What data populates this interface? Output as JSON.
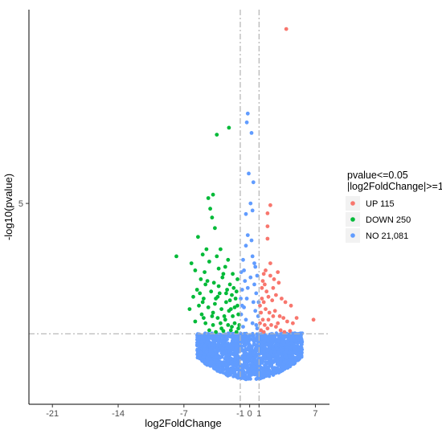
{
  "chart_data": {
    "type": "scatter",
    "title": "",
    "xlabel": "log2FoldChange",
    "ylabel": "-log10(pvalue)",
    "xlim": [
      -23.5,
      8.5
    ],
    "ylim": [
      -0.7,
      10.5
    ],
    "x_ticks": [
      -21,
      -14,
      -7,
      -1,
      0,
      1,
      7
    ],
    "y_ticks": [
      5
    ],
    "thresholds": {
      "log2fc": [
        -1,
        1
      ],
      "neg_log10_p": 1.3
    },
    "grid": false,
    "legend": {
      "title_line1": "pvalue<=0.05",
      "title_line2": "|log2FoldChange|>=1",
      "placement": "right",
      "entries": [
        {
          "label": "UP 115",
          "color": "#F8766D"
        },
        {
          "label": "DOWN 250",
          "color": "#00BA38"
        },
        {
          "label": "NO 21,081",
          "color": "#619CFF"
        }
      ]
    },
    "series": [
      {
        "name": "UP 115",
        "color": "#F8766D",
        "points": [
          [
            3.9,
            9.95
          ],
          [
            2.2,
            4.95
          ],
          [
            1.9,
            4.72
          ],
          [
            1.9,
            4.35
          ],
          [
            1.9,
            4.0
          ],
          [
            2.2,
            3.3
          ],
          [
            3.0,
            3.05
          ],
          [
            2.2,
            2.95
          ],
          [
            2.6,
            2.85
          ],
          [
            3.1,
            2.75
          ],
          [
            2.5,
            2.6
          ],
          [
            1.5,
            3.0
          ],
          [
            1.6,
            2.7
          ],
          [
            1.8,
            2.5
          ],
          [
            2.0,
            2.35
          ],
          [
            2.4,
            2.25
          ],
          [
            3.4,
            2.3
          ],
          [
            3.8,
            2.2
          ],
          [
            4.4,
            2.1
          ],
          [
            6.8,
            1.7
          ],
          [
            1.3,
            2.6
          ],
          [
            1.5,
            2.2
          ],
          [
            1.7,
            2.0
          ],
          [
            2.1,
            1.9
          ],
          [
            2.7,
            1.95
          ],
          [
            3.2,
            1.8
          ],
          [
            3.6,
            1.75
          ],
          [
            4.0,
            1.65
          ],
          [
            4.6,
            1.6
          ],
          [
            5.0,
            1.75
          ],
          [
            1.2,
            1.9
          ],
          [
            1.4,
            1.7
          ],
          [
            1.6,
            1.55
          ],
          [
            1.9,
            1.45
          ],
          [
            2.3,
            1.55
          ],
          [
            2.8,
            1.5
          ],
          [
            3.3,
            1.4
          ],
          [
            3.7,
            1.35
          ],
          [
            4.3,
            1.38
          ],
          [
            1.1,
            1.6
          ],
          [
            1.2,
            1.4
          ],
          [
            1.5,
            1.35
          ],
          [
            2.0,
            1.7
          ],
          [
            2.5,
            1.8
          ],
          [
            3.0,
            1.6
          ],
          [
            1.3,
            2.3
          ],
          [
            1.4,
            2.8
          ],
          [
            1.7,
            3.1
          ],
          [
            2.8,
            2.4
          ],
          [
            1.1,
            2.1
          ]
        ]
      },
      {
        "name": "DOWN 250",
        "color": "#00BA38",
        "points": [
          [
            -2.2,
            7.15
          ],
          [
            -3.5,
            6.95
          ],
          [
            -4.4,
            5.15
          ],
          [
            -3.9,
            5.25
          ],
          [
            -4.2,
            4.85
          ],
          [
            -4.0,
            4.6
          ],
          [
            -5.5,
            4.05
          ],
          [
            -3.7,
            4.3
          ],
          [
            -3.1,
            3.7
          ],
          [
            -4.6,
            3.7
          ],
          [
            -5.0,
            3.55
          ],
          [
            -7.8,
            3.5
          ],
          [
            -6.2,
            3.3
          ],
          [
            -4.3,
            3.35
          ],
          [
            -3.5,
            3.5
          ],
          [
            -2.3,
            3.4
          ],
          [
            -5.8,
            3.1
          ],
          [
            -4.8,
            3.05
          ],
          [
            -3.3,
            3.15
          ],
          [
            -2.6,
            3.2
          ],
          [
            -5.2,
            2.85
          ],
          [
            -4.5,
            2.8
          ],
          [
            -3.8,
            2.75
          ],
          [
            -2.9,
            2.9
          ],
          [
            -2.1,
            2.7
          ],
          [
            -5.6,
            2.55
          ],
          [
            -4.1,
            2.5
          ],
          [
            -3.2,
            2.45
          ],
          [
            -1.7,
            2.6
          ],
          [
            -6.0,
            2.35
          ],
          [
            -4.9,
            2.3
          ],
          [
            -3.6,
            2.3
          ],
          [
            -2.5,
            2.2
          ],
          [
            -1.5,
            2.3
          ],
          [
            -5.4,
            2.1
          ],
          [
            -4.4,
            2.05
          ],
          [
            -3.0,
            2.0
          ],
          [
            -2.0,
            2.0
          ],
          [
            -1.3,
            2.1
          ],
          [
            -5.1,
            1.85
          ],
          [
            -4.0,
            1.8
          ],
          [
            -3.4,
            1.75
          ],
          [
            -2.7,
            1.8
          ],
          [
            -1.8,
            1.8
          ],
          [
            -1.2,
            1.85
          ],
          [
            -5.8,
            1.65
          ],
          [
            -4.7,
            1.6
          ],
          [
            -3.9,
            1.55
          ],
          [
            -3.1,
            1.6
          ],
          [
            -2.3,
            1.55
          ],
          [
            -1.6,
            1.6
          ],
          [
            -1.1,
            1.55
          ],
          [
            -4.3,
            1.4
          ],
          [
            -3.6,
            1.35
          ],
          [
            -2.8,
            1.38
          ],
          [
            -2.0,
            1.4
          ],
          [
            -1.4,
            1.35
          ],
          [
            -3.3,
            2.65
          ],
          [
            -2.4,
            2.55
          ],
          [
            -1.9,
            2.4
          ],
          [
            -4.7,
            2.7
          ],
          [
            -3.7,
            2.15
          ],
          [
            -2.2,
            1.95
          ],
          [
            -1.6,
            2.05
          ],
          [
            -5.3,
            2.45
          ],
          [
            -1.3,
            2.85
          ],
          [
            -2.8,
            3.0
          ],
          [
            -3.9,
            1.9
          ],
          [
            -2.6,
            1.7
          ],
          [
            -1.9,
            1.5
          ],
          [
            -1.2,
            1.45
          ],
          [
            -4.9,
            1.75
          ],
          [
            -6.4,
            2.0
          ],
          [
            -5.0,
            2.2
          ],
          [
            -1.8,
            3.0
          ],
          [
            -2.5,
            2.45
          ],
          [
            -3.4,
            2.35
          ],
          [
            -1.4,
            2.5
          ],
          [
            -2.1,
            2.25
          ],
          [
            -3.0,
            1.45
          ]
        ]
      },
      {
        "name": "NO 21,081",
        "color": "#619CFF",
        "points": [
          [
            -0.2,
            7.55
          ],
          [
            -0.3,
            7.3
          ],
          [
            0.2,
            7.0
          ],
          [
            -0.1,
            5.85
          ],
          [
            0.4,
            5.6
          ],
          [
            0.1,
            5.0
          ],
          [
            0.3,
            4.8
          ],
          [
            -0.4,
            4.7
          ],
          [
            -0.2,
            4.1
          ],
          [
            0.2,
            3.95
          ],
          [
            -0.4,
            3.8
          ],
          [
            0.3,
            3.5
          ],
          [
            -0.7,
            3.4
          ],
          [
            0.6,
            3.2
          ],
          [
            -0.9,
            3.05
          ],
          [
            0.8,
            2.95
          ],
          [
            -0.5,
            2.8
          ],
          [
            0.5,
            2.7
          ],
          [
            -0.8,
            2.55
          ],
          [
            0.7,
            2.45
          ],
          [
            -0.3,
            2.3
          ],
          [
            0.4,
            2.2
          ],
          [
            -0.6,
            2.05
          ],
          [
            0.6,
            1.95
          ],
          [
            -0.9,
            1.85
          ],
          [
            0.9,
            1.8
          ],
          [
            -0.4,
            1.7
          ],
          [
            0.3,
            1.6
          ],
          [
            -0.7,
            1.5
          ],
          [
            0.8,
            1.45
          ],
          [
            -5.1,
            1.2
          ],
          [
            -3.8,
            1.25
          ],
          [
            -2.6,
            1.28
          ],
          [
            -1.8,
            1.3
          ],
          [
            5.5,
            1.15
          ],
          [
            4.3,
            1.2
          ],
          [
            3.1,
            1.25
          ],
          [
            2.2,
            1.28
          ],
          [
            -0.95,
            2.3
          ],
          [
            0.95,
            2.2
          ],
          [
            -0.6,
            3.1
          ],
          [
            0.5,
            3.3
          ],
          [
            -0.2,
            2.6
          ],
          [
            0.1,
            2.9
          ],
          [
            -0.8,
            2.1
          ],
          [
            0.7,
            1.55
          ]
        ]
      }
    ]
  }
}
